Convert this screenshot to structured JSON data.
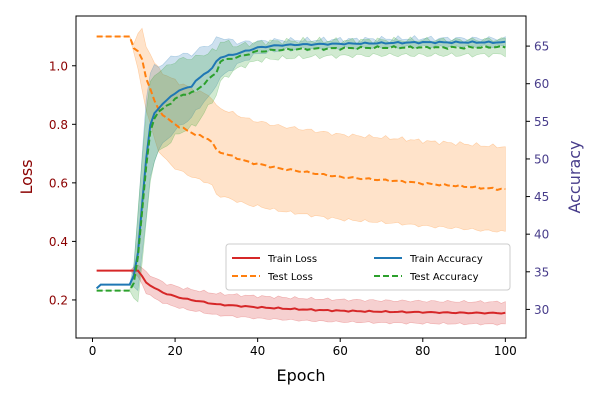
{
  "chart_data": {
    "type": "line",
    "x": [
      1,
      2,
      3,
      4,
      5,
      6,
      7,
      8,
      9,
      10,
      11,
      12,
      13,
      14,
      15,
      16,
      17,
      18,
      19,
      20,
      21,
      22,
      23,
      24,
      25,
      26,
      27,
      28,
      29,
      30,
      31,
      32,
      33,
      34,
      35,
      36,
      37,
      38,
      39,
      40,
      41,
      42,
      43,
      44,
      45,
      46,
      47,
      48,
      49,
      50,
      51,
      52,
      53,
      54,
      55,
      56,
      57,
      58,
      59,
      60,
      61,
      62,
      63,
      64,
      65,
      66,
      67,
      68,
      69,
      70,
      71,
      72,
      73,
      74,
      75,
      76,
      77,
      78,
      79,
      80,
      81,
      82,
      83,
      84,
      85,
      86,
      87,
      88,
      89,
      90,
      91,
      92,
      93,
      94,
      95,
      96,
      97,
      98,
      99,
      100
    ],
    "xlabel": "Epoch",
    "ylabel_left": "Loss",
    "ylabel_right": "Accuracy",
    "xlim": [
      -4,
      105
    ],
    "ylim_left": [
      0.07,
      1.17
    ],
    "ylim_right": [
      26.2,
      69.0
    ],
    "xticks": [
      "0",
      "20",
      "40",
      "60",
      "80",
      "100"
    ],
    "yticks_left": [
      "0.2",
      "0.4",
      "0.6",
      "0.8",
      "1.0"
    ],
    "yticks_right": [
      "30",
      "35",
      "40",
      "45",
      "50",
      "55",
      "60",
      "65"
    ],
    "grid": false,
    "legend_position": "center-right",
    "colors": {
      "train_loss": "#d62728",
      "test_loss": "#ff7f0e",
      "train_accuracy": "#1f77b4",
      "test_accuracy": "#2ca02c",
      "left_axis_text": "#8b0000",
      "right_axis_text": "#483d8b"
    },
    "series": [
      {
        "key": "train_loss",
        "name": "Train Loss",
        "axis": "left",
        "style": "solid",
        "color": "#d62728",
        "mean_knots": [
          [
            1,
            0.3
          ],
          [
            11,
            0.3
          ],
          [
            12,
            0.28
          ],
          [
            13,
            0.26
          ],
          [
            15,
            0.24
          ],
          [
            18,
            0.22
          ],
          [
            22,
            0.205
          ],
          [
            30,
            0.185
          ],
          [
            40,
            0.175
          ],
          [
            50,
            0.168
          ],
          [
            60,
            0.163
          ],
          [
            70,
            0.16
          ],
          [
            80,
            0.158
          ],
          [
            90,
            0.156
          ],
          [
            100,
            0.155
          ]
        ],
        "band_knots": [
          [
            1,
            0.0
          ],
          [
            9,
            0.0
          ],
          [
            10,
            0.012
          ],
          [
            13,
            0.035
          ],
          [
            20,
            0.035
          ],
          [
            40,
            0.038
          ],
          [
            100,
            0.038
          ]
        ]
      },
      {
        "key": "test_loss",
        "name": "Test Loss",
        "axis": "left",
        "style": "dashed",
        "color": "#ff7f0e",
        "mean_knots": [
          [
            1,
            1.1
          ],
          [
            9,
            1.1
          ],
          [
            10,
            1.06
          ],
          [
            11,
            1.05
          ],
          [
            12,
            1.02
          ],
          [
            13,
            0.96
          ],
          [
            14,
            0.92
          ],
          [
            15,
            0.88
          ],
          [
            16,
            0.85
          ],
          [
            18,
            0.82
          ],
          [
            20,
            0.8
          ],
          [
            22,
            0.785
          ],
          [
            25,
            0.765
          ],
          [
            28,
            0.75
          ],
          [
            29,
            0.74
          ],
          [
            30,
            0.71
          ],
          [
            32,
            0.7
          ],
          [
            35,
            0.685
          ],
          [
            38,
            0.67
          ],
          [
            40,
            0.665
          ],
          [
            45,
            0.65
          ],
          [
            50,
            0.64
          ],
          [
            55,
            0.63
          ],
          [
            60,
            0.62
          ],
          [
            65,
            0.615
          ],
          [
            70,
            0.61
          ],
          [
            75,
            0.605
          ],
          [
            80,
            0.598
          ],
          [
            85,
            0.593
          ],
          [
            90,
            0.588
          ],
          [
            95,
            0.582
          ],
          [
            100,
            0.578
          ]
        ],
        "band_knots": [
          [
            1,
            0.0
          ],
          [
            9,
            0.0
          ],
          [
            10,
            0.015
          ],
          [
            11,
            0.06
          ],
          [
            12,
            0.1
          ],
          [
            14,
            0.12
          ],
          [
            16,
            0.14
          ],
          [
            20,
            0.15
          ],
          [
            30,
            0.15
          ],
          [
            40,
            0.145
          ],
          [
            60,
            0.145
          ],
          [
            100,
            0.145
          ]
        ]
      },
      {
        "key": "train_accuracy",
        "name": "Train Accuracy",
        "axis": "right",
        "style": "solid",
        "color": "#1f77b4",
        "mean_knots": [
          [
            1,
            32.8
          ],
          [
            2,
            33.3
          ],
          [
            9,
            33.3
          ],
          [
            10,
            34.5
          ],
          [
            11,
            37.5
          ],
          [
            12,
            44.0
          ],
          [
            13,
            50.0
          ],
          [
            14,
            54.5
          ],
          [
            15,
            56.0
          ],
          [
            16,
            56.8
          ],
          [
            18,
            57.8
          ],
          [
            20,
            58.8
          ],
          [
            22,
            59.3
          ],
          [
            24,
            59.7
          ],
          [
            25,
            60.3
          ],
          [
            27,
            61.3
          ],
          [
            29,
            62.0
          ],
          [
            30,
            63.0
          ],
          [
            31,
            63.5
          ],
          [
            35,
            64.0
          ],
          [
            40,
            64.8
          ],
          [
            45,
            65.1
          ],
          [
            50,
            65.2
          ],
          [
            60,
            65.3
          ],
          [
            70,
            65.4
          ],
          [
            80,
            65.5
          ],
          [
            90,
            65.5
          ],
          [
            100,
            65.5
          ]
        ],
        "band_knots": [
          [
            1,
            0.0
          ],
          [
            9,
            0.0
          ],
          [
            10,
            1.5
          ],
          [
            11,
            5.0
          ],
          [
            13,
            8.0
          ],
          [
            14,
            7.0
          ],
          [
            16,
            5.5
          ],
          [
            20,
            5.0
          ],
          [
            25,
            4.0
          ],
          [
            28,
            3.5
          ],
          [
            30,
            3.0
          ],
          [
            35,
            1.5
          ],
          [
            40,
            0.8
          ],
          [
            50,
            0.6
          ],
          [
            100,
            0.5
          ]
        ]
      },
      {
        "key": "test_accuracy",
        "name": "Test Accuracy",
        "axis": "right",
        "style": "dashed",
        "color": "#2ca02c",
        "mean_knots": [
          [
            1,
            32.5
          ],
          [
            9,
            32.5
          ],
          [
            10,
            33.5
          ],
          [
            11,
            37.0
          ],
          [
            12,
            43.0
          ],
          [
            13,
            49.0
          ],
          [
            14,
            53.5
          ],
          [
            15,
            55.5
          ],
          [
            16,
            56.3
          ],
          [
            18,
            57.0
          ],
          [
            20,
            58.0
          ],
          [
            22,
            58.5
          ],
          [
            25,
            59.0
          ],
          [
            27,
            60.0
          ],
          [
            29,
            61.0
          ],
          [
            30,
            61.5
          ],
          [
            31,
            63.0
          ],
          [
            33,
            63.3
          ],
          [
            35,
            63.5
          ],
          [
            38,
            64.0
          ],
          [
            40,
            64.3
          ],
          [
            45,
            64.5
          ],
          [
            50,
            64.6
          ],
          [
            60,
            64.7
          ],
          [
            70,
            64.8
          ],
          [
            80,
            64.8
          ],
          [
            90,
            64.8
          ],
          [
            100,
            64.9
          ]
        ],
        "band_knots": [
          [
            1,
            0.0
          ],
          [
            9,
            0.0
          ],
          [
            10,
            2.0
          ],
          [
            11,
            6.0
          ],
          [
            12,
            7.0
          ],
          [
            13,
            7.5
          ],
          [
            15,
            5.5
          ],
          [
            20,
            5.0
          ],
          [
            25,
            4.5
          ],
          [
            30,
            3.0
          ],
          [
            35,
            1.5
          ],
          [
            40,
            1.2
          ],
          [
            60,
            1.0
          ],
          [
            100,
            1.0
          ]
        ]
      }
    ]
  }
}
